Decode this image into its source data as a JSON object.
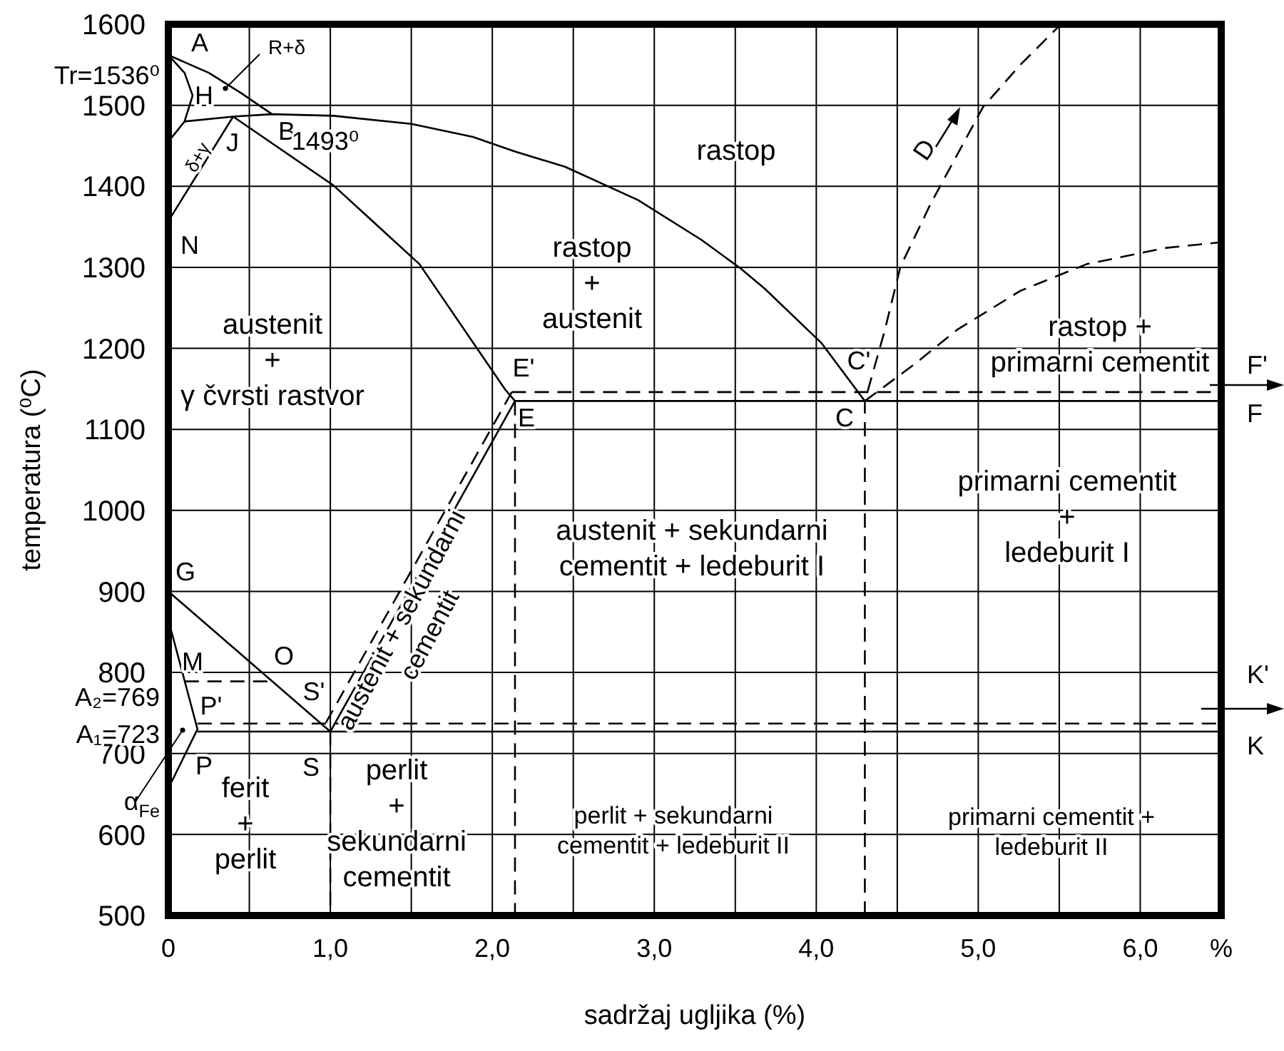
{
  "chart_data": {
    "type": "line",
    "xlabel": "sadržaj ugljika (%)",
    "ylabel": "temperatura (⁰C)",
    "xlim": [
      0,
      6.5
    ],
    "ylim": [
      500,
      1600
    ],
    "xticks": [
      {
        "value": 0,
        "label": "0"
      },
      {
        "value": 0.5,
        "label": null
      },
      {
        "value": 1,
        "label": "1,0"
      },
      {
        "value": 1.5,
        "label": null
      },
      {
        "value": 2,
        "label": "2,0"
      },
      {
        "value": 2.5,
        "label": null
      },
      {
        "value": 3,
        "label": "3,0"
      },
      {
        "value": 3.5,
        "label": null
      },
      {
        "value": 4,
        "label": "4,0"
      },
      {
        "value": 4.5,
        "label": null
      },
      {
        "value": 5,
        "label": "5,0"
      },
      {
        "value": 5.5,
        "label": null
      },
      {
        "value": 6,
        "label": "6,0"
      },
      {
        "value": 6.5,
        "label": "%"
      }
    ],
    "yticks": [
      500,
      600,
      700,
      800,
      900,
      1000,
      1100,
      1200,
      1300,
      1400,
      1500,
      1600
    ],
    "grid": true,
    "marker": "none",
    "series": [
      {
        "color": "#000000",
        "line_style": "solid",
        "x": [
          0,
          0.25,
          0.45,
          0.64
        ],
        "values": [
          1562,
          1540,
          1515,
          1489
        ]
      },
      {
        "color": "#000000",
        "line_style": "solid",
        "x": [
          0,
          0.1,
          0.15,
          0.1,
          0.02
        ],
        "values": [
          1562,
          1540,
          1512,
          1480,
          1460
        ]
      },
      {
        "color": "#000000",
        "line_style": "solid",
        "x": [
          0.1,
          0.4,
          0.64,
          1.02,
          1.5,
          1.88,
          2.14,
          2.45,
          2.9,
          3.29,
          3.53,
          3.68,
          4.03,
          4.3
        ],
        "values": [
          1480,
          1486,
          1489,
          1487,
          1477,
          1461,
          1443,
          1424,
          1383,
          1334,
          1299,
          1274,
          1207,
          1135
        ]
      },
      {
        "color": "#000000",
        "line_style": "solid",
        "x": [
          0.4,
          0
        ],
        "values": [
          1486,
          1357
        ]
      },
      {
        "color": "#000000",
        "line_style": "solid",
        "x": [
          0.4,
          1.02,
          1.55,
          2.08,
          2.14
        ],
        "values": [
          1486,
          1401,
          1304,
          1149,
          1135
        ]
      },
      {
        "color": "#000000",
        "line_style": "solid",
        "x": [
          2.14,
          1.0
        ],
        "values": [
          1135,
          727
        ]
      },
      {
        "color": "#000000",
        "line_style": "dashed",
        "x": [
          2.12,
          0.97
        ],
        "values": [
          1146,
          737
        ]
      },
      {
        "color": "#000000",
        "line_style": "solid",
        "x": [
          2.14,
          6.5
        ],
        "values": [
          1135,
          1135
        ]
      },
      {
        "color": "#000000",
        "line_style": "dashed",
        "x": [
          2.12,
          6.5
        ],
        "values": [
          1146,
          1146
        ]
      },
      {
        "color": "#000000",
        "line_style": "solid",
        "x": [
          0,
          1.0
        ],
        "values": [
          900,
          727
        ]
      },
      {
        "color": "#000000",
        "line_style": "solid",
        "x": [
          0,
          0.18,
          0.02
        ],
        "values": [
          865,
          730,
          665
        ]
      },
      {
        "color": "#000000",
        "line_style": "dashed",
        "x": [
          0.1,
          0.66
        ],
        "values": [
          789,
          789
        ]
      },
      {
        "color": "#000000",
        "line_style": "solid",
        "x": [
          0.18,
          6.5
        ],
        "values": [
          727,
          727
        ]
      },
      {
        "color": "#000000",
        "line_style": "dashed",
        "x": [
          0.18,
          6.5
        ],
        "values": [
          737,
          737
        ]
      },
      {
        "color": "#000000",
        "line_style": "dashed",
        "x": [
          1.0,
          1.0
        ],
        "values": [
          727,
          500
        ]
      },
      {
        "color": "#000000",
        "line_style": "dashed",
        "x": [
          2.14,
          2.14
        ],
        "values": [
          1135,
          500
        ]
      },
      {
        "color": "#000000",
        "line_style": "dashed",
        "x": [
          4.3,
          4.3,
          4.42,
          4.52,
          4.71,
          5.03,
          5.26,
          5.51
        ],
        "values": [
          500,
          1135,
          1220,
          1301,
          1380,
          1498,
          1550,
          1600
        ]
      },
      {
        "color": "#000000",
        "line_style": "dashed",
        "x": [
          4.3,
          4.61,
          4.87,
          5.26,
          5.67,
          6.16,
          6.5
        ],
        "values": [
          1135,
          1181,
          1223,
          1271,
          1304,
          1324,
          1331
        ]
      }
    ],
    "annotations": [
      "Tr=1536⁰",
      "A₂=769",
      "A₁=723",
      "α$_{Fe}$",
      "A",
      "H",
      "R+δ",
      "J",
      "B",
      "1493⁰",
      "δ+γ",
      "N",
      "rastop",
      "rastop\n+\naustenit",
      "D",
      "austenit\n+\nγ čvrsti rastvor",
      "E'",
      "E",
      "C'",
      "C",
      "rastop +\nprimarni cementit",
      "F'",
      "F",
      "primarni cementit\n+\nledeburit I",
      "austenit + sekundarni\ncementit + ledeburit I",
      "G",
      "M",
      "O",
      "S'",
      "P'",
      "P",
      "S",
      "austenit + sekundarni\ncementit",
      "K'",
      "K",
      "ferit\n+\nperlit",
      "perlit\n+\nsekundarni\ncementit",
      "perlit + sekundarni\ncementit + ledeburit II",
      "primarni cementit +\nledeburit II"
    ]
  }
}
